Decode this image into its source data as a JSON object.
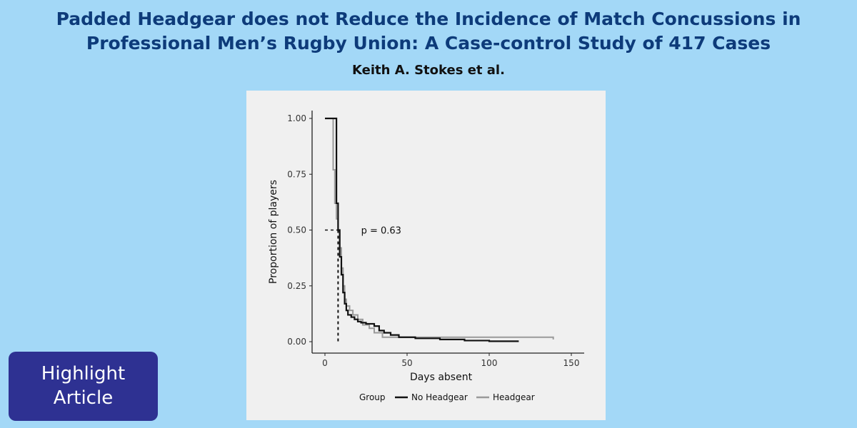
{
  "header": {
    "title_line1": "Padded Headgear does not Reduce the Incidence of Match Concussions in",
    "title_line2": "Professional Men’s Rugby Union: A Case-control Study of 417 Cases",
    "authors": "Keith A. Stokes et al."
  },
  "badge": {
    "line1": "Highlight",
    "line2": "Article"
  },
  "colors": {
    "background": "#a3d8f7",
    "title": "#0d3b7a",
    "badge": "#2e3192",
    "no_headgear": "#111111",
    "headgear": "#9a9a9a"
  },
  "chart_data": {
    "type": "line",
    "title": "",
    "xlabel": "Days absent",
    "ylabel": "Proportion of players",
    "xlim": [
      -8,
      158
    ],
    "ylim": [
      0,
      1.05
    ],
    "xticks": [
      0,
      50,
      100,
      150
    ],
    "yticks": [
      0,
      0.25,
      0.5,
      0.75,
      1
    ],
    "xtick_labels": [
      "0",
      "50",
      "100",
      "150"
    ],
    "ytick_labels": [
      "0.00",
      "0.25",
      "0.50",
      "0.75",
      "1.00"
    ],
    "grid": false,
    "legend": {
      "title": "Group",
      "position": "bottom"
    },
    "annotation": "p = 0.63",
    "median_marker": {
      "x": 8,
      "y": 0.5
    },
    "series": [
      {
        "name": "No Headgear",
        "step": true,
        "x": [
          0,
          6,
          7,
          8,
          9,
          10,
          11,
          12,
          13,
          14,
          16,
          18,
          20,
          22,
          25,
          30,
          33,
          36,
          40,
          45,
          55,
          70,
          85,
          100,
          118
        ],
        "y": [
          1.0,
          1.0,
          0.62,
          0.5,
          0.38,
          0.3,
          0.22,
          0.17,
          0.14,
          0.12,
          0.11,
          0.1,
          0.09,
          0.085,
          0.08,
          0.07,
          0.05,
          0.04,
          0.03,
          0.02,
          0.015,
          0.01,
          0.005,
          0.002,
          0.002
        ]
      },
      {
        "name": "Headgear",
        "step": true,
        "x": [
          0,
          4,
          5,
          6,
          7,
          8,
          9,
          10,
          11,
          12,
          13,
          15,
          17,
          20,
          23,
          27,
          30,
          35,
          40,
          60,
          100,
          139
        ],
        "y": [
          1.0,
          1.0,
          0.77,
          0.62,
          0.55,
          0.5,
          0.42,
          0.33,
          0.25,
          0.19,
          0.16,
          0.14,
          0.12,
          0.1,
          0.075,
          0.06,
          0.04,
          0.02,
          0.02,
          0.02,
          0.02,
          0.01
        ]
      }
    ]
  }
}
